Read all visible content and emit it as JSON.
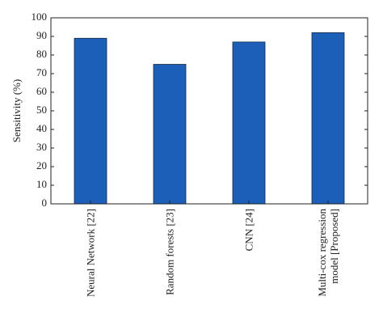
{
  "chart_data": {
    "type": "bar",
    "y_label": "Sensitivity (%)",
    "categories": [
      "Neural Network [22]",
      "Random forests [23]",
      "CNN [24]",
      "Multi-cox regression model [Proposed]"
    ],
    "values": [
      89,
      75,
      87,
      92
    ],
    "color": "#1c5fb8",
    "ylim": [
      0,
      100
    ],
    "yticks": [
      0,
      10,
      20,
      30,
      40,
      50,
      60,
      70,
      80,
      90,
      100
    ]
  }
}
